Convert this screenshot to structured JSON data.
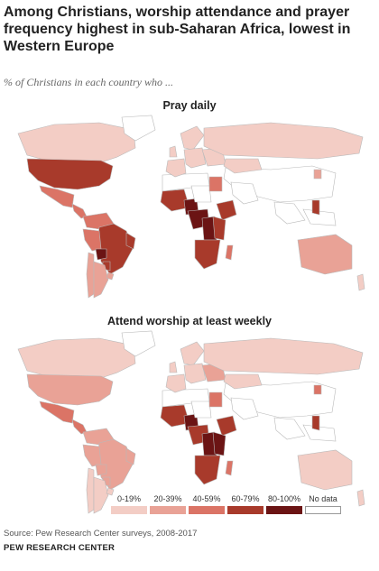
{
  "title": "Among Christians, worship attendance and prayer frequency highest in sub-Saharan Africa, lowest in Western Europe",
  "subtitle": "% of Christians in each country who ...",
  "maps": [
    {
      "title": "Pray daily",
      "regions": {
        "canada": "c1",
        "greenland": "nd",
        "usa": "c4",
        "mexico": "c3",
        "central_america": "c3",
        "colombia_venezuela": "c3",
        "brazil": "c4",
        "brazil_northeast": "c4",
        "peru": "c3",
        "bolivia": "c5",
        "paraguay": "c4",
        "chile": "c2",
        "argentina": "c2",
        "uruguay": "c2",
        "uk": "c1",
        "france_iberia": "c1",
        "scandinavia": "c1",
        "central_europe": "c1",
        "eastern_europe": "c1",
        "russia": "c1",
        "kazakhstan": "c1",
        "west_africa": "c4",
        "nigeria": "c5",
        "chad": "nd",
        "egypt": "c3",
        "ethiopia": "c4",
        "central_africa": "c5",
        "congo_east": "c5",
        "east_africa": "c4",
        "southern_africa": "c4",
        "madagascar": "c3",
        "philippines": "c4",
        "korea": "c2",
        "australia": "c2",
        "new_zealand": "c1"
      }
    },
    {
      "title": "Attend worship at least weekly",
      "regions": {
        "canada": "c1",
        "greenland": "nd",
        "usa": "c2",
        "mexico": "c3",
        "central_america": "c3",
        "colombia_venezuela": "c2",
        "brazil": "c2",
        "brazil_northeast": "c2",
        "peru": "c2",
        "bolivia": "c2",
        "paraguay": "c2",
        "chile": "c1",
        "argentina": "c1",
        "uruguay": "c1",
        "uk": "c1",
        "france_iberia": "c1",
        "scandinavia": "c1",
        "central_europe": "c1",
        "eastern_europe": "c2",
        "russia": "c1",
        "kazakhstan": "c1",
        "west_africa": "c4",
        "nigeria": "c5",
        "chad": "nd",
        "egypt": "c3",
        "ethiopia": "c4",
        "central_africa": "c4",
        "congo_east": "c5",
        "east_africa": "c5",
        "southern_africa": "c4",
        "madagascar": "c3",
        "philippines": "c4",
        "korea": "c3",
        "australia": "c1",
        "new_zealand": "c1"
      }
    }
  ],
  "legend": [
    {
      "label": "0-19%",
      "color": "#f3cdc5"
    },
    {
      "label": "20-39%",
      "color": "#e9a296"
    },
    {
      "label": "40-59%",
      "color": "#db7466"
    },
    {
      "label": "60-79%",
      "color": "#a83a2b"
    },
    {
      "label": "80-100%",
      "color": "#6b1414"
    },
    {
      "label": "No data",
      "color": "#ffffff"
    }
  ],
  "colors": {
    "c1": "#f3cdc5",
    "c2": "#e9a296",
    "c3": "#db7466",
    "c4": "#a83a2b",
    "c5": "#6b1414",
    "nd": "#ffffff",
    "border": "#b9b9b9"
  },
  "source": "Source: Pew Research Center surveys, 2008-2017",
  "organization": "PEW RESEARCH CENTER"
}
